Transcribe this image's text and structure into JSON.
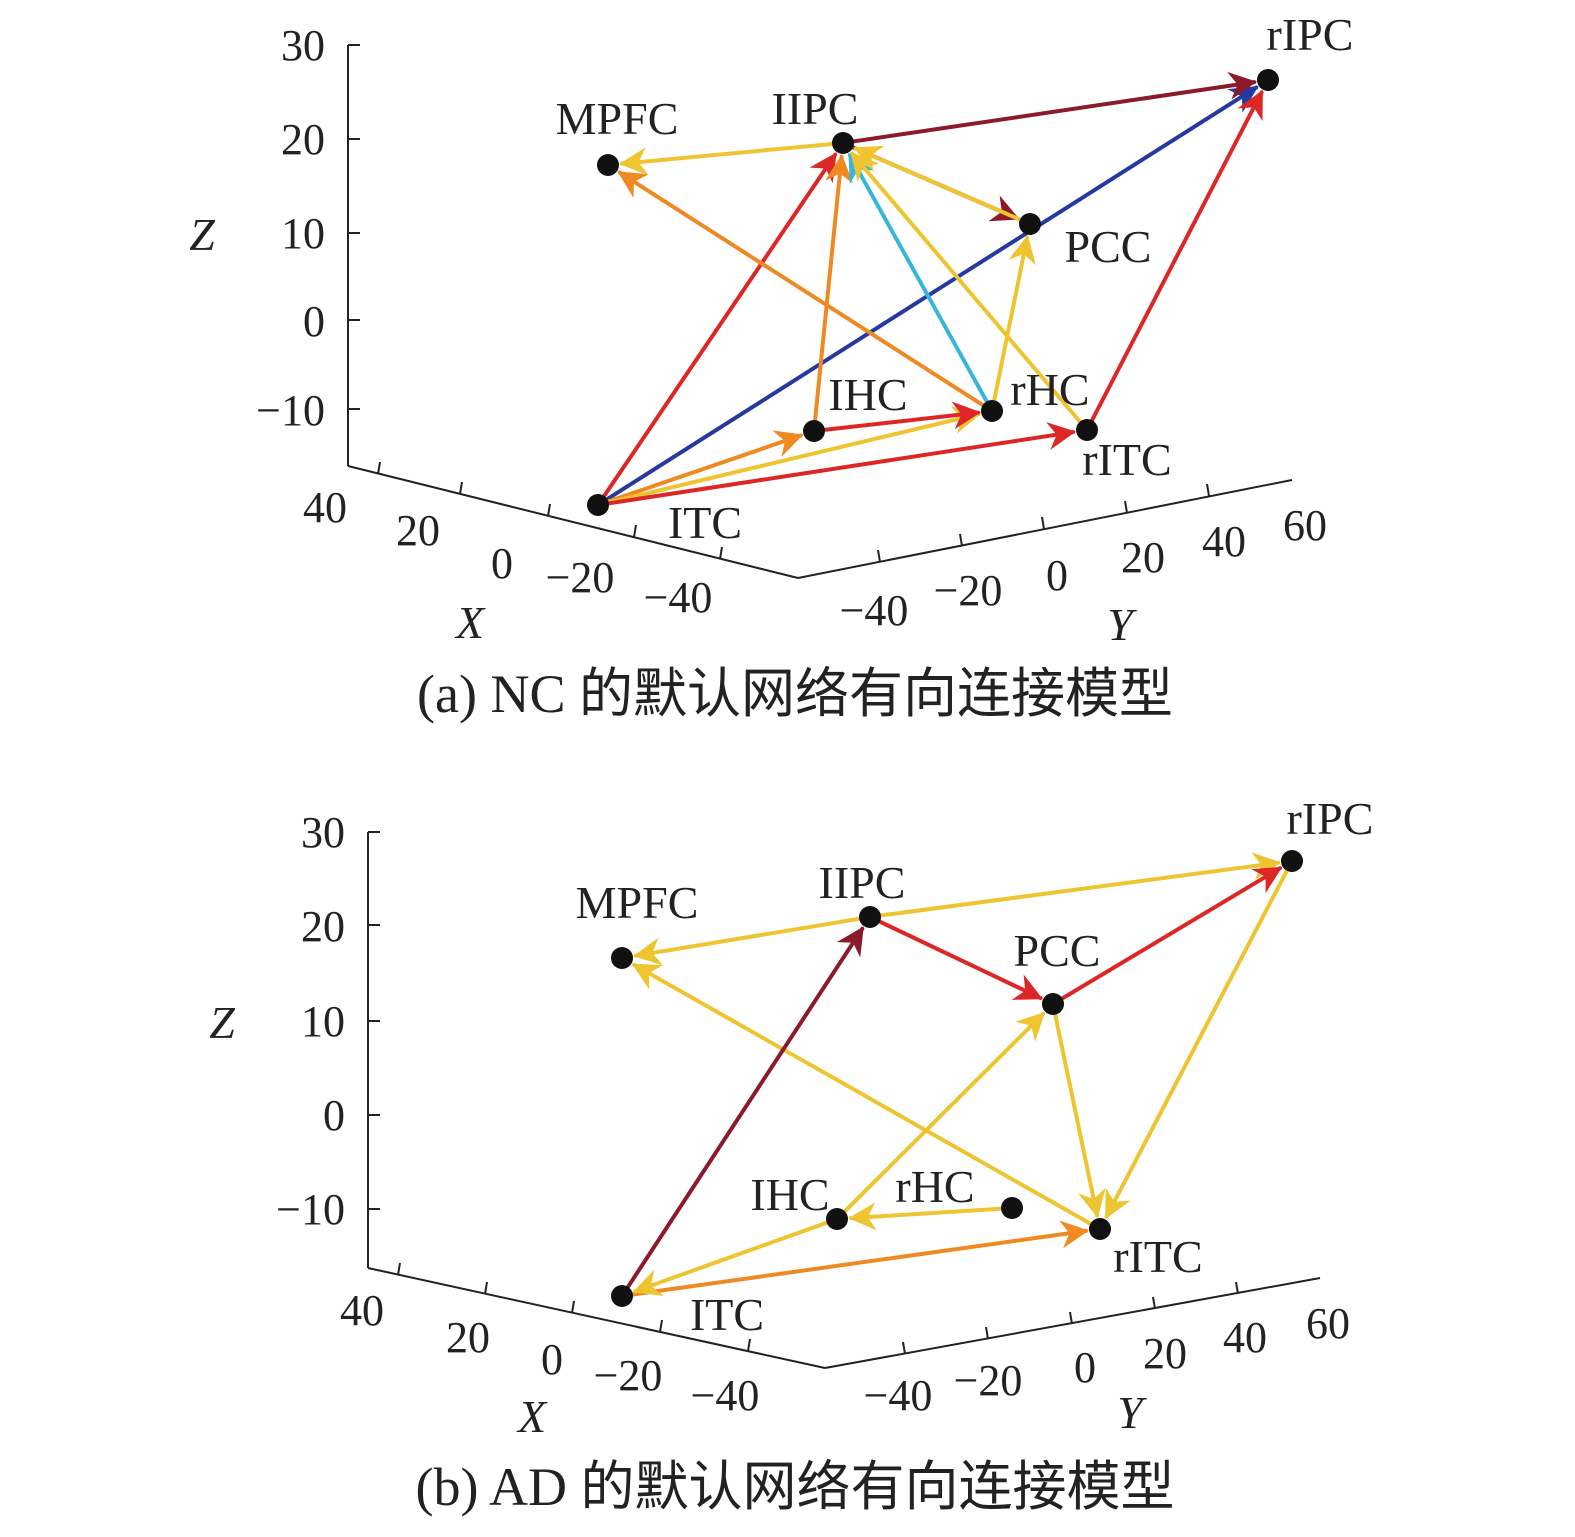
{
  "colors": {
    "dark_red": "#8b1a2a",
    "red": "#dd2727",
    "orange": "#ef8a22",
    "yellow": "#eec531",
    "blue": "#243aa0",
    "cyan": "#37b6db",
    "node": "#111111",
    "axis": "#222222"
  },
  "panels": [
    {
      "id": "a",
      "caption": "(a) NC 的默认网络有向连接模型",
      "z_ticks": [
        "30",
        "20",
        "10",
        "0",
        "−10"
      ],
      "x_ticks": [
        "40",
        "20",
        "0",
        "−20",
        "−40"
      ],
      "y_ticks": [
        "−40",
        "−20",
        "0",
        "20",
        "40",
        "60"
      ],
      "axis_labels": {
        "x": "X",
        "y": "Y",
        "z": "Z"
      },
      "nodes": [
        "MPFC",
        "lIPC",
        "rIPC",
        "PCC",
        "lHC",
        "rHC",
        "rITC",
        "ITC"
      ],
      "node_labels": {
        "MPFC": "MPFC",
        "lIPC": "IIPC",
        "rIPC": "rIPC",
        "PCC": "PCC",
        "lHC": "IHC",
        "rHC": "rHC",
        "rITC": "rITC",
        "ITC": "ITC"
      },
      "edges": [
        {
          "from": "ITC",
          "to": "rIPC",
          "color": "blue"
        },
        {
          "from": "ITC",
          "to": "lIPC",
          "color": "red"
        },
        {
          "from": "ITC",
          "to": "lHC",
          "color": "orange"
        },
        {
          "from": "ITC",
          "to": "rHC",
          "color": "yellow"
        },
        {
          "from": "ITC",
          "to": "rITC",
          "color": "red"
        },
        {
          "from": "lHC",
          "to": "rHC",
          "color": "red"
        },
        {
          "from": "lHC",
          "to": "lIPC",
          "color": "orange"
        },
        {
          "from": "rHC",
          "to": "MPFC",
          "color": "orange"
        },
        {
          "from": "rHC",
          "to": "lIPC",
          "color": "cyan"
        },
        {
          "from": "rHC",
          "to": "PCC",
          "color": "yellow"
        },
        {
          "from": "rITC",
          "to": "lIPC",
          "color": "yellow"
        },
        {
          "from": "rITC",
          "to": "rIPC",
          "color": "red"
        },
        {
          "from": "lIPC",
          "to": "rIPC",
          "color": "dark_red"
        },
        {
          "from": "lIPC",
          "to": "PCC",
          "color": "dark_red"
        },
        {
          "from": "lIPC",
          "to": "MPFC",
          "color": "yellow"
        },
        {
          "from": "PCC",
          "to": "lIPC",
          "color": "yellow"
        }
      ]
    },
    {
      "id": "b",
      "caption": "(b) AD 的默认网络有向连接模型",
      "z_ticks": [
        "30",
        "20",
        "10",
        "0",
        "−10"
      ],
      "x_ticks": [
        "40",
        "20",
        "0",
        "−20",
        "−40"
      ],
      "y_ticks": [
        "−40",
        "−20",
        "0",
        "20",
        "40",
        "60"
      ],
      "axis_labels": {
        "x": "X",
        "y": "Y",
        "z": "Z"
      },
      "nodes": [
        "MPFC",
        "lIPC",
        "rIPC",
        "PCC",
        "lHC",
        "rHC",
        "rITC",
        "ITC"
      ],
      "node_labels": {
        "MPFC": "MPFC",
        "lIPC": "IIPC",
        "rIPC": "rIPC",
        "PCC": "PCC",
        "lHC": "IHC",
        "rHC": "rHC",
        "rITC": "rITC",
        "ITC": "ITC"
      },
      "edges": [
        {
          "from": "lIPC",
          "to": "MPFC",
          "color": "yellow"
        },
        {
          "from": "lIPC",
          "to": "rIPC",
          "color": "yellow"
        },
        {
          "from": "lIPC",
          "to": "PCC",
          "color": "red"
        },
        {
          "from": "PCC",
          "to": "rIPC",
          "color": "red"
        },
        {
          "from": "PCC",
          "to": "rITC",
          "color": "yellow"
        },
        {
          "from": "rIPC",
          "to": "rITC",
          "color": "yellow"
        },
        {
          "from": "rITC",
          "to": "MPFC",
          "color": "yellow"
        },
        {
          "from": "ITC",
          "to": "lIPC",
          "color": "dark_red"
        },
        {
          "from": "ITC",
          "to": "rITC",
          "color": "orange"
        },
        {
          "from": "lHC",
          "to": "ITC",
          "color": "yellow"
        },
        {
          "from": "lHC",
          "to": "PCC",
          "color": "yellow"
        },
        {
          "from": "rHC",
          "to": "lHC",
          "color": "yellow"
        }
      ]
    }
  ]
}
